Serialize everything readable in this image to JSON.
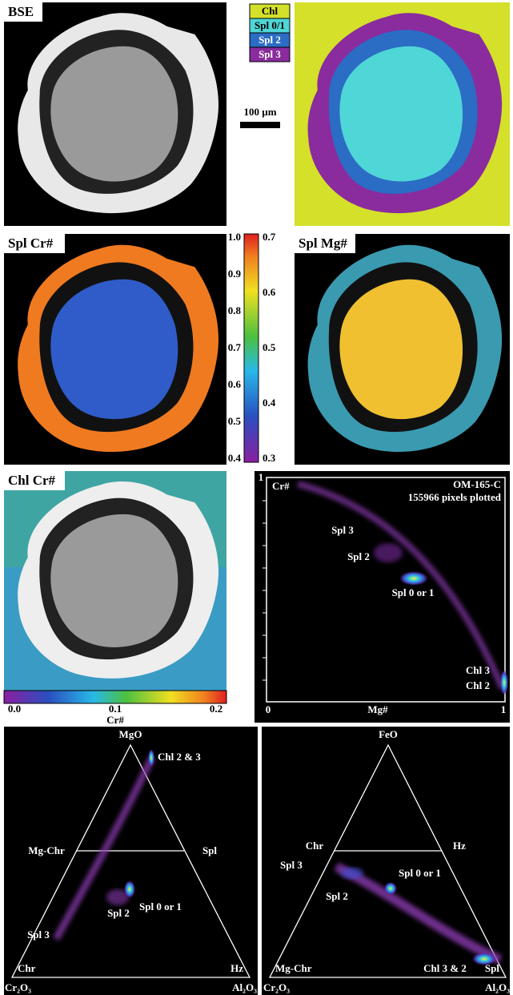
{
  "panels": {
    "bse": {
      "label": "BSE"
    },
    "phase_map": {
      "legend": [
        "Chl",
        "Spl 0/1",
        "Spl 2",
        "Spl 3"
      ],
      "scale_bar": "100 µm"
    },
    "spl_cr": {
      "label": "Spl Cr#"
    },
    "spl_mg": {
      "label": "Spl Mg#"
    },
    "spl_colorbar": {
      "left_ticks": [
        "1.0",
        "0.9",
        "0.8",
        "0.7",
        "0.6",
        "0.5",
        "0.4"
      ],
      "right_ticks": [
        "0.7",
        "0.6",
        "0.5",
        "0.4",
        "0.3"
      ]
    },
    "chl_cr": {
      "label": "Chl Cr#",
      "colorbar_ticks": [
        "0.0",
        "0.1",
        "0.2"
      ],
      "colorbar_label": "Cr#"
    },
    "scatter": {
      "sample": "OM-165-C",
      "count": "155966 pixels plotted",
      "y_label": "Cr#",
      "x_label": "Mg#",
      "y_max": "1",
      "x_min": "0",
      "x_max": "1",
      "annotations": [
        "Spl 3",
        "Spl 2",
        "Spl 0 or 1",
        "Chl 3",
        "Chl 2"
      ]
    },
    "ternary_mg": {
      "apex": "MgO",
      "mid_left": "Mg-Chr",
      "mid_right": "Spl",
      "base_left": "Chr",
      "base_right": "Hz",
      "corner_left": "Cr₂O₃",
      "corner_right": "Al₂O₃",
      "annotations": [
        "Chl 2 & 3",
        "Spl 0 or 1",
        "Spl 2",
        "Spl 3"
      ]
    },
    "ternary_fe": {
      "apex": "FeO",
      "mid_left": "Chr",
      "mid_right": "Hz",
      "base_left": "Mg-Chr",
      "base_right": "Spl",
      "corner_left": "Cr₂O₃",
      "corner_right": "Al₂O₃",
      "annotations": [
        "Spl 3",
        "Spl 0 or 1",
        "Spl 2",
        "Chl 3 & 2"
      ]
    }
  }
}
